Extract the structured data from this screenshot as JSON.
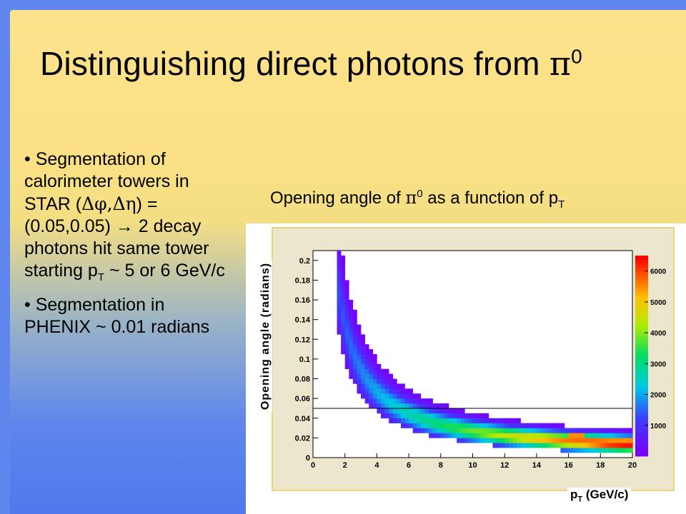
{
  "slide": {
    "title_text": "Distinguishing direct photons from ",
    "title_symbol": "π",
    "title_superscript": "0",
    "bullets": [
      {
        "parts": [
          "• Segmentation of calorimeter towers in STAR  (",
          "Δφ,Δη",
          ") = (0.05,0.05) ",
          "→",
          " 2 decay photons hit same tower starting p",
          "T",
          " ~ 5 or 6 GeV/c"
        ]
      },
      {
        "parts": [
          "• Segmentation in PHENIX ~ 0.01 radians"
        ]
      }
    ],
    "caption": {
      "before": "Opening angle of ",
      "symbol": "π",
      "sup": "0",
      "middle": " as a function of p",
      "sub": "T"
    }
  },
  "chart_data": {
    "type": "heatmap",
    "title": "",
    "xlabel": "p",
    "xlabel_sub": "T",
    "xlabel_rest": " (GeV/c)",
    "ylabel": "Opening angle (radians)",
    "xlim": [
      0,
      20
    ],
    "ylim": [
      0,
      0.21
    ],
    "x_ticks": [
      0,
      2,
      4,
      6,
      8,
      10,
      12,
      14,
      16,
      18,
      20
    ],
    "y_ticks": [
      0,
      0.02,
      0.04,
      0.06,
      0.08,
      0.1,
      0.12,
      0.14,
      0.16,
      0.18,
      0.2
    ],
    "y_tick_labels": [
      "0",
      "0.02",
      "0.04",
      "0.06",
      "0.08",
      "0.1",
      "0.12",
      "0.14",
      "0.16",
      "0.18",
      "0.2"
    ],
    "colorbar_ticks": [
      1000,
      2000,
      3000,
      4000,
      5000,
      6000
    ],
    "colorbar_range": [
      0,
      6500
    ],
    "reference_line_y": 0.05,
    "band_model": "opening_angle ≈ 0.270 / pT with spread narrowing at high pT; density rising with pT",
    "colors": {
      "low": "#7a00ff",
      "mid": "#00d0d0",
      "high": "#ff0000",
      "frame_border": "#e6d583",
      "frame_bg": "#ebe6cc"
    }
  }
}
